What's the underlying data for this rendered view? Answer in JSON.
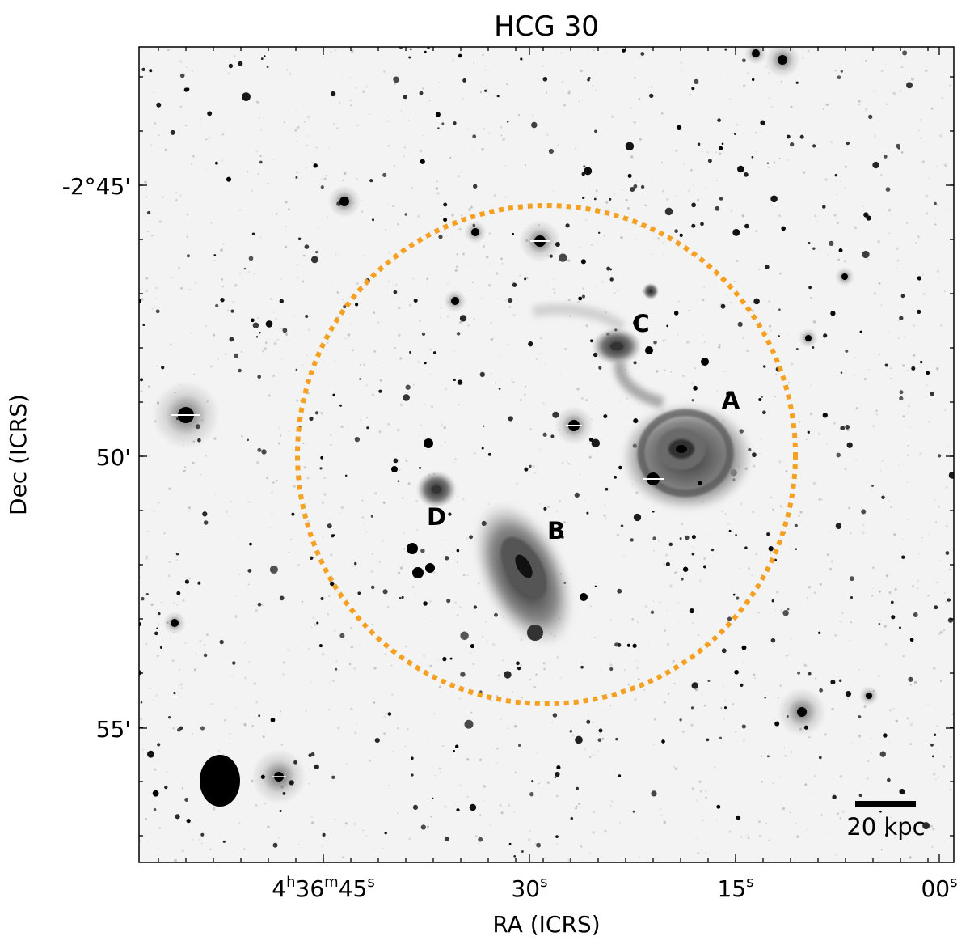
{
  "figure": {
    "title": "HCG 30",
    "xlabel": "RA (ICRS)",
    "ylabel": "Dec (ICRS)",
    "ra_ticks": [
      {
        "h": "4",
        "m": "36",
        "s": "45",
        "kind": "full"
      },
      {
        "s": "30",
        "kind": "sec"
      },
      {
        "s": "15",
        "kind": "sec"
      },
      {
        "s": "00",
        "kind": "sec"
      }
    ],
    "dec_ticks": [
      "-2°45'",
      "50'",
      "55'"
    ],
    "galaxy_labels": [
      "A",
      "B",
      "C",
      "D"
    ],
    "scale_bar_label": "20 kpc",
    "colors": {
      "circle": "#f5a020",
      "background": "#ffffff",
      "ink": "#000000"
    }
  }
}
